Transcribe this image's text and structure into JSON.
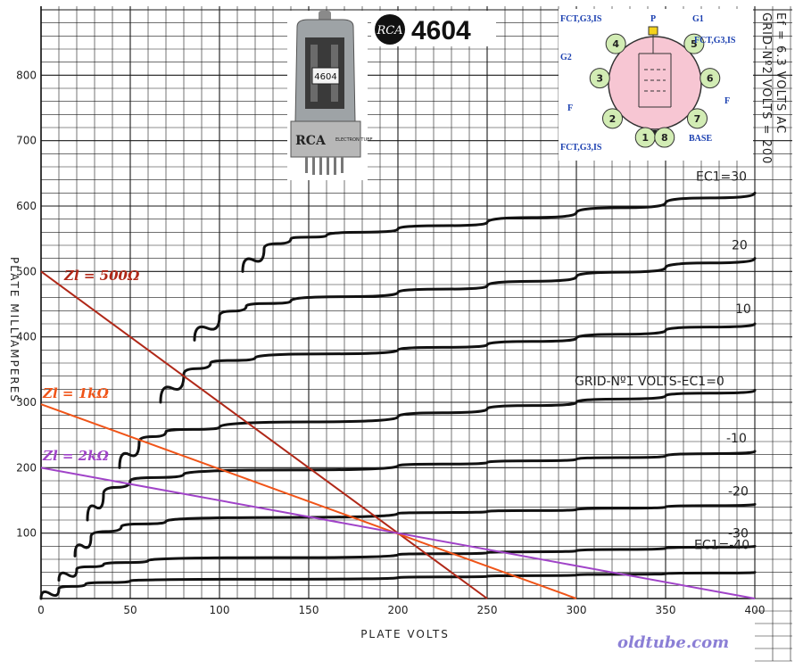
{
  "chart_data": {
    "type": "line",
    "xlabel": "PLATE VOLTS",
    "ylabel": "PLATE MILLIAMPERES",
    "xlim": [
      0,
      400
    ],
    "ylim": [
      0,
      900
    ],
    "x_ticks": [
      "0",
      "50",
      "100",
      "150",
      "200",
      "250",
      "300",
      "350",
      "400"
    ],
    "y_ticks": [
      "100",
      "200",
      "300",
      "400",
      "500",
      "600",
      "700",
      "800"
    ],
    "grid": true,
    "conditions": "Ef = 6.3 VOLTS AC  GRID-Nº2 VOLTS = 200",
    "series": [
      {
        "name": "EC1=30",
        "label": "EC1=30",
        "x": [
          113,
          125,
          140,
          160,
          200,
          250,
          300,
          350,
          400
        ],
        "y": [
          500,
          535,
          550,
          555,
          565,
          575,
          590,
          605,
          620
        ]
      },
      {
        "name": "20",
        "label": "20",
        "x": [
          86,
          100,
          115,
          140,
          200,
          250,
          300,
          350,
          400
        ],
        "y": [
          395,
          432,
          447,
          455,
          468,
          478,
          492,
          506,
          520
        ]
      },
      {
        "name": "10",
        "label": "10",
        "x": [
          67,
          80,
          95,
          120,
          200,
          250,
          300,
          350,
          400
        ],
        "y": [
          300,
          343,
          360,
          368,
          380,
          388,
          398,
          410,
          420
        ]
      },
      {
        "name": "GRID-Nº1 VOLTS-EC1=0",
        "label": "GRID-Nº1 VOLTS-EC1=0",
        "x": [
          44,
          55,
          70,
          100,
          200,
          250,
          300,
          350,
          400
        ],
        "y": [
          200,
          240,
          255,
          262,
          278,
          290,
          300,
          310,
          318
        ]
      },
      {
        "name": "-10",
        "label": "-10",
        "x": [
          26,
          35,
          50,
          80,
          200,
          250,
          300,
          350,
          400
        ],
        "y": [
          120,
          160,
          180,
          190,
          203,
          208,
          213,
          218,
          225
        ]
      },
      {
        "name": "-20",
        "label": "-20",
        "x": [
          19,
          28,
          45,
          70,
          200,
          250,
          300,
          350,
          400
        ],
        "y": [
          65,
          95,
          110,
          118,
          130,
          133,
          136,
          140,
          144
        ]
      },
      {
        "name": "-30",
        "label": "-30",
        "x": [
          10,
          20,
          35,
          60,
          200,
          250,
          300,
          350,
          400
        ],
        "y": [
          28,
          45,
          52,
          58,
          67,
          70,
          73,
          77,
          80
        ]
      },
      {
        "name": "EC1=-40",
        "label": "EC1=-40",
        "x": [
          0,
          10,
          25,
          50,
          200,
          250,
          300,
          350,
          400
        ],
        "y": [
          0,
          15,
          22,
          27,
          32,
          34,
          36,
          38,
          40
        ]
      }
    ],
    "load_lines": [
      {
        "label": "Zl = 500Ω",
        "color": "#b02818",
        "x": [
          0,
          250
        ],
        "y": [
          500,
          0
        ]
      },
      {
        "label": "Zl = 1kΩ",
        "color": "#f05418",
        "x": [
          0,
          300
        ],
        "y": [
          297,
          0
        ]
      },
      {
        "label": "Zl = 2kΩ",
        "color": "#a043c8",
        "x": [
          0,
          400
        ],
        "y": [
          200,
          0
        ]
      }
    ]
  },
  "header": {
    "brand_logo": "RCA",
    "tube_model": "4604",
    "tube_photo_label": "4604",
    "tube_base_text": "RCA",
    "tube_base_text_2": "ELECTRON TUBE"
  },
  "side_note_lines": [
    "Ef = 6.3 VOLTS AC",
    "GRID-Nº2 VOLTS = 200"
  ],
  "pinout": {
    "pins": [
      {
        "num": "1",
        "label": "FCT,G3,IS"
      },
      {
        "num": "2",
        "label": "F"
      },
      {
        "num": "3",
        "label": "G2"
      },
      {
        "num": "4",
        "label": "FCT,G3,IS"
      },
      {
        "num": "5",
        "label": "G1"
      },
      {
        "num": "6",
        "label": "FCT,G3,IS"
      },
      {
        "num": "7",
        "label": "F"
      },
      {
        "num": "8",
        "label": "BASE"
      }
    ],
    "top_label": "P",
    "circle_color": "#f7c6d3",
    "pin_color": "#d2ecb4"
  },
  "watermark": "oldtube.com"
}
